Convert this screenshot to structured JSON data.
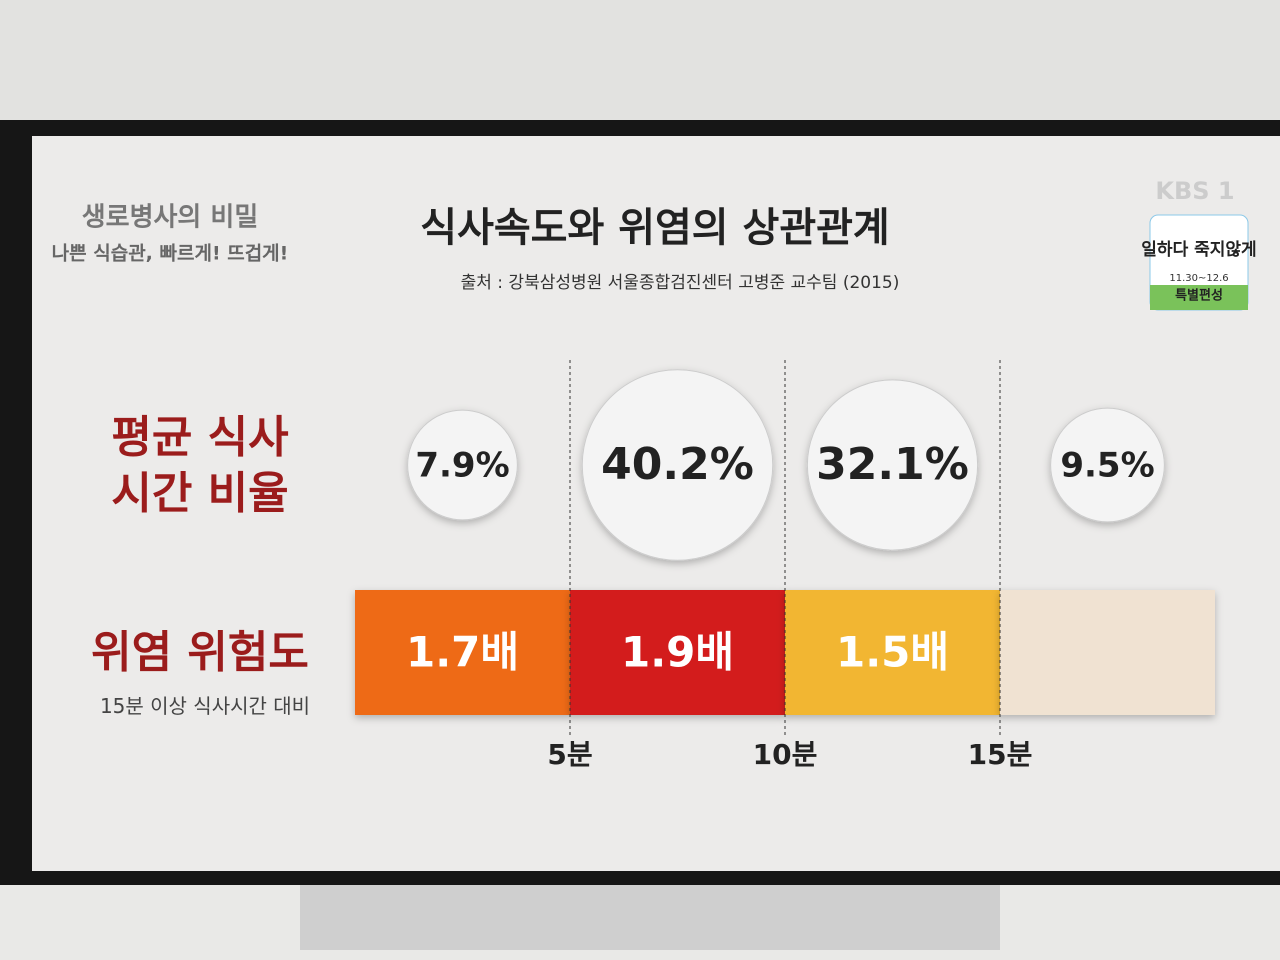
{
  "chart_data": {
    "type": "bubble-band",
    "title": "식사속도와 위염의 상관관계",
    "source": "출처 : 강북삼성병원 서울종합검진센터 고병준 교수팀 (2015)",
    "xlim": [
      0,
      20
    ],
    "xticks": [
      {
        "value": 5,
        "label": "5분"
      },
      {
        "value": 10,
        "label": "10분"
      },
      {
        "value": 15,
        "label": "15분"
      }
    ],
    "series": [
      {
        "name": "평균 식사 시간 비율",
        "color": "#f4f4f4",
        "values": [
          7.9,
          40.2,
          32.1,
          9.5
        ],
        "value_labels": [
          "7.9%",
          "40.2%",
          "32.1%",
          "9.5%"
        ]
      },
      {
        "name": "위염 위험도",
        "note": "15분 이상 식사시간 대비",
        "colors": [
          "#ee6a12",
          "#d31a1a",
          "#f2b632",
          "#f0e2d2"
        ],
        "values": [
          1.7,
          1.9,
          1.5,
          null
        ],
        "value_labels": [
          "1.7배",
          "1.9배",
          "1.5배",
          null
        ]
      }
    ]
  },
  "overlay": {
    "program": "생로병사의 비밀",
    "tagline": "나쁜 식습관, 빠르게! 뜨겁게!",
    "channel": "KBS 1",
    "campaign": "일하다 죽지않게",
    "dates": "11.30~12.6",
    "note": "특별편성"
  }
}
